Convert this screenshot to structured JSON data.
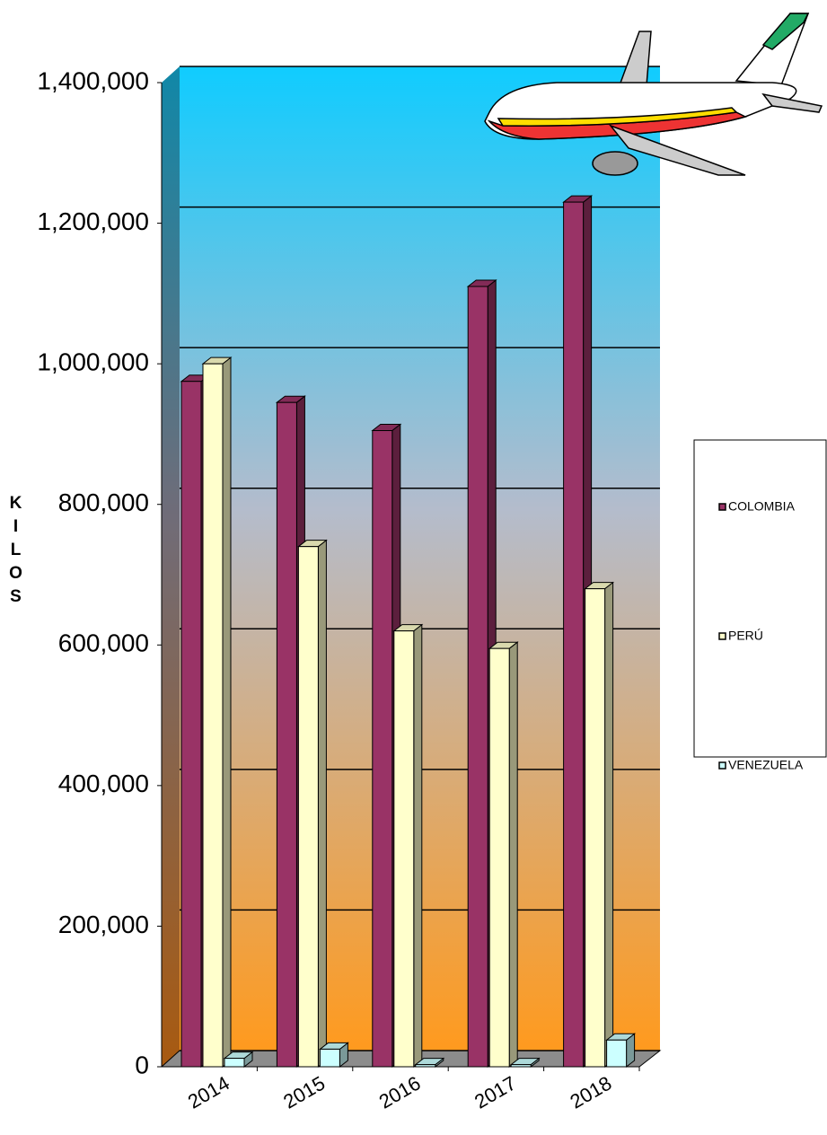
{
  "chart_data": {
    "type": "bar3d",
    "y_label": "KILOS",
    "categories": [
      "2014",
      "2015",
      "2016",
      "2017",
      "2018"
    ],
    "series": [
      {
        "name": "COLOMBIA",
        "color": "#993366",
        "values": [
          975000,
          945000,
          905000,
          1110000,
          1230000
        ]
      },
      {
        "name": "PERÚ",
        "color": "#ffffcc",
        "values": [
          1000000,
          740000,
          620000,
          595000,
          680000
        ]
      },
      {
        "name": "VENEZUELA",
        "color": "#ccffff",
        "values": [
          12000,
          25000,
          3000,
          3000,
          38000
        ]
      }
    ],
    "ylim": [
      0,
      1400000
    ],
    "yticks": [
      0,
      {
        "value": 200000,
        "label": "200,000"
      },
      {
        "value": 400000,
        "label": "400,000"
      },
      {
        "value": 600000,
        "label": "600,000"
      },
      {
        "value": 800000,
        "label": "800,000"
      },
      {
        "value": 1000000,
        "label": "1,000,000"
      },
      {
        "value": 1200000,
        "label": "1,200,000"
      },
      {
        "value": 1400000,
        "label": "1,400,000"
      }
    ],
    "grid": true,
    "legend": "right"
  }
}
